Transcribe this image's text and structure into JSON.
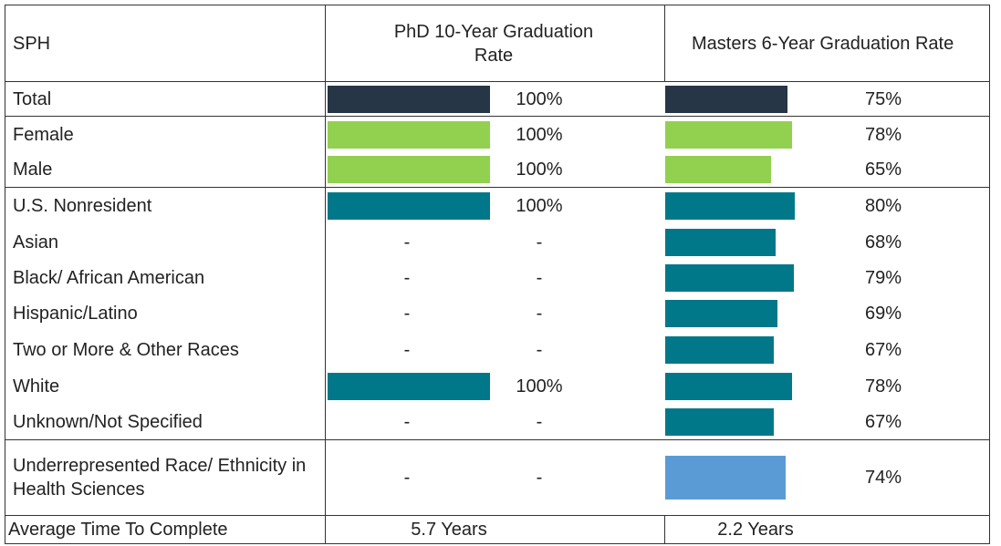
{
  "header": {
    "label": "SPH",
    "phd": "PhD 10-Year Graduation Rate",
    "masters": "Masters 6-Year Graduation Rate"
  },
  "rows": [
    {
      "name": "Total",
      "color": "#263646",
      "phd": 100,
      "phd_label": "100%",
      "masters": 75,
      "masters_label": "75%"
    },
    {
      "name": "Female",
      "color": "#92d050",
      "phd": 100,
      "phd_label": "100%",
      "masters": 78,
      "masters_label": "78%"
    },
    {
      "name": "Male",
      "color": "#92d050",
      "phd": 100,
      "phd_label": "100%",
      "masters": 65,
      "masters_label": "65%"
    },
    {
      "name": "U.S. Nonresident",
      "color": "#00788a",
      "phd": 100,
      "phd_label": "100%",
      "masters": 80,
      "masters_label": "80%"
    },
    {
      "name": "Asian",
      "color": "#00788a",
      "phd": null,
      "phd_label": "-",
      "masters": 68,
      "masters_label": "68%"
    },
    {
      "name": "Black/ African American",
      "color": "#00788a",
      "phd": null,
      "phd_label": "-",
      "masters": 79,
      "masters_label": "79%"
    },
    {
      "name": "Hispanic/Latino",
      "color": "#00788a",
      "phd": null,
      "phd_label": "-",
      "masters": 69,
      "masters_label": "69%"
    },
    {
      "name": "Two or More & Other Races",
      "color": "#00788a",
      "phd": null,
      "phd_label": "-",
      "masters": 67,
      "masters_label": "67%"
    },
    {
      "name": "White",
      "color": "#00788a",
      "phd": 100,
      "phd_label": "100%",
      "masters": 78,
      "masters_label": "78%"
    },
    {
      "name": "Unknown/Not Specified",
      "color": "#00788a",
      "phd": null,
      "phd_label": "-",
      "masters": 67,
      "masters_label": "67%"
    },
    {
      "name": "Underrepresented Race/ Ethnicity in Health Sciences",
      "color": "#5b9bd5",
      "phd": null,
      "phd_label": "-",
      "masters": 74,
      "masters_label": "74%"
    }
  ],
  "footer": {
    "label": "Average Time To Complete",
    "phd": "5.7 Years",
    "masters": "2.2 Years"
  }
}
